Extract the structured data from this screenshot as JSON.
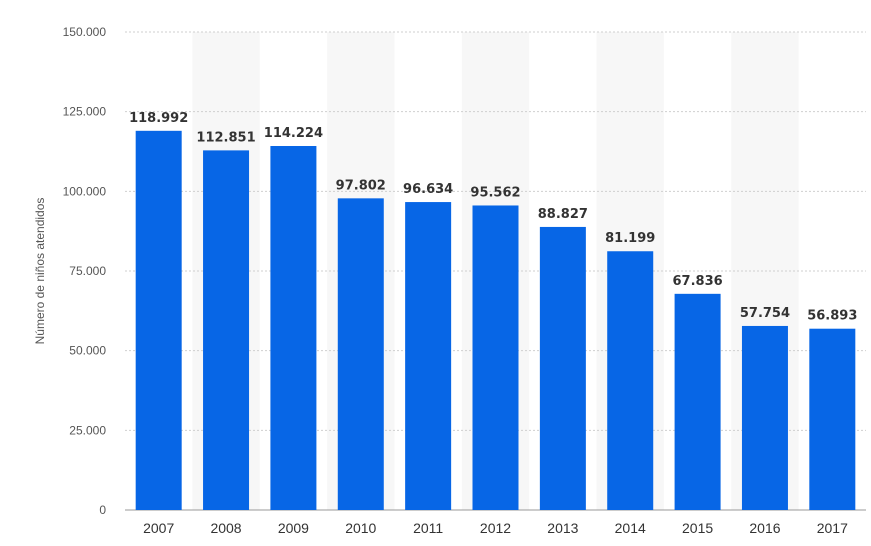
{
  "chart_data": {
    "type": "bar",
    "title": "",
    "xlabel": "",
    "ylabel": "Número de niños atendidos",
    "categories": [
      "2007",
      "2008",
      "2009",
      "2010",
      "2011",
      "2012",
      "2013",
      "2014",
      "2015",
      "2016",
      "2017"
    ],
    "values": [
      118992,
      112851,
      114224,
      97802,
      96634,
      95562,
      88827,
      81199,
      67836,
      57754,
      56893
    ],
    "ylim": [
      0,
      150000
    ],
    "yticks": [
      0,
      25000,
      50000,
      75000,
      100000,
      125000,
      150000
    ],
    "value_labels": true,
    "grid": true,
    "grid_style": "dotted",
    "legend": "none",
    "colors": {
      "bar": "#0766e6",
      "band": "#f7f7f7",
      "grid": "#cfcfcf",
      "axis": "#999999"
    }
  }
}
